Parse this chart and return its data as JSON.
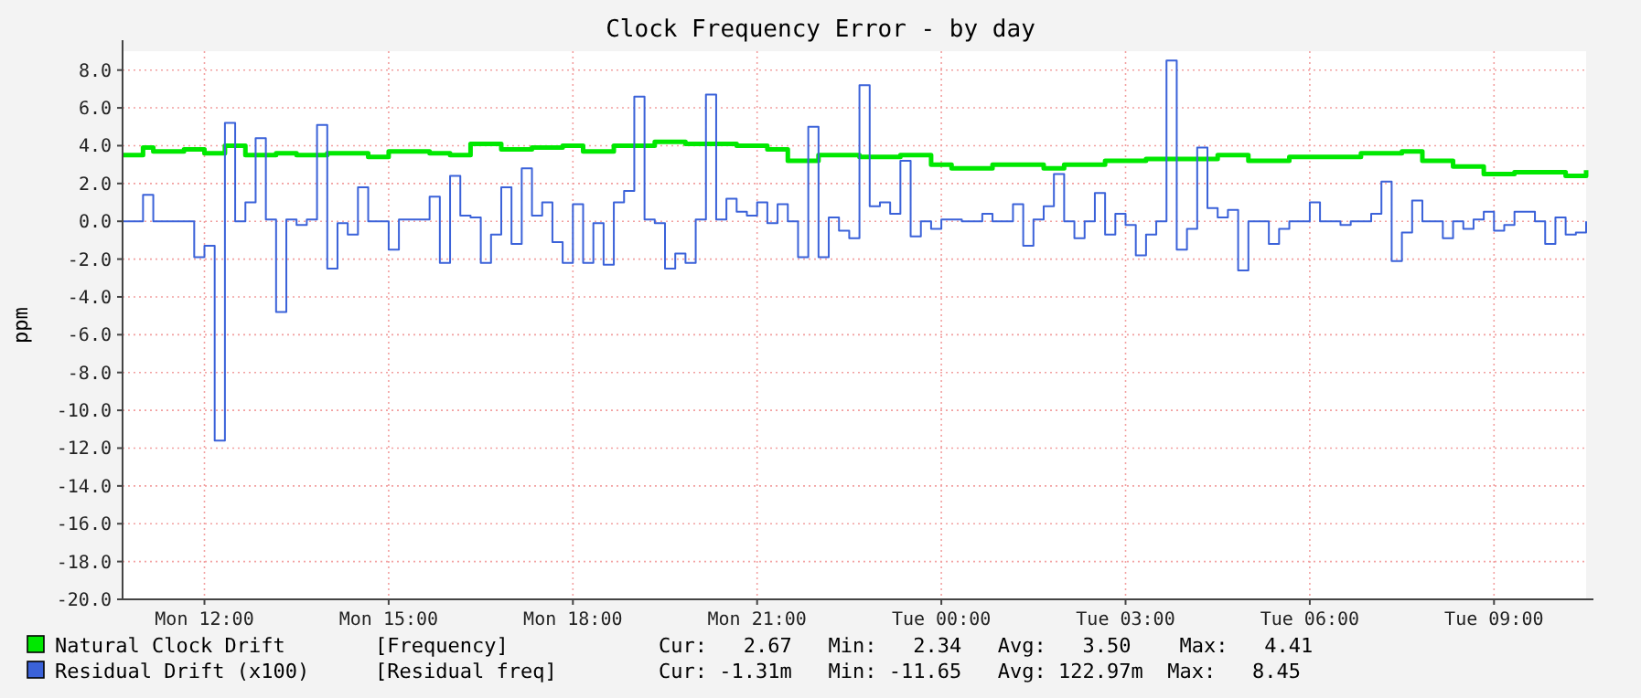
{
  "chart_data": {
    "type": "step",
    "title": "Clock Frequency Error - by day",
    "ylabel": "ppm",
    "categories": [
      null,
      null,
      null,
      null,
      null,
      null,
      null,
      null,
      "Mon 12:00",
      null,
      null,
      null,
      null,
      null,
      null,
      null,
      null,
      null,
      null,
      null,
      null,
      null,
      null,
      null,
      null,
      null,
      "Mon 15:00",
      null,
      null,
      null,
      null,
      null,
      null,
      null,
      null,
      null,
      null,
      null,
      null,
      null,
      null,
      null,
      null,
      null,
      "Mon 18:00",
      null,
      null,
      null,
      null,
      null,
      null,
      null,
      null,
      null,
      null,
      null,
      null,
      null,
      null,
      null,
      null,
      null,
      "Mon 21:00",
      null,
      null,
      null,
      null,
      null,
      null,
      null,
      null,
      null,
      null,
      null,
      null,
      null,
      null,
      null,
      null,
      null,
      "Tue 00:00",
      null,
      null,
      null,
      null,
      null,
      null,
      null,
      null,
      null,
      null,
      null,
      null,
      null,
      null,
      null,
      null,
      null,
      "Tue 03:00",
      null,
      null,
      null,
      null,
      null,
      null,
      null,
      null,
      null,
      null,
      null,
      null,
      null,
      null,
      null,
      null,
      null,
      "Tue 06:00",
      null,
      null,
      null,
      null,
      null,
      null,
      null,
      null,
      null,
      null,
      null,
      null,
      null,
      null,
      null,
      null,
      null,
      "Tue 09:00",
      null,
      null,
      null,
      null,
      null,
      null,
      null,
      null,
      null
    ],
    "ylim": [
      -20,
      9
    ],
    "yticks": [
      {
        "value": 8,
        "label": "8.0"
      },
      {
        "value": 6,
        "label": "6.0"
      },
      {
        "value": 4,
        "label": "4.0"
      },
      {
        "value": 2,
        "label": "2.0"
      },
      {
        "value": 0,
        "label": "0.0"
      },
      {
        "value": -2,
        "label": "-2.0"
      },
      {
        "value": -4,
        "label": "-4.0"
      },
      {
        "value": -6,
        "label": "-6.0"
      },
      {
        "value": -8,
        "label": "-8.0"
      },
      {
        "value": -10,
        "label": "-10.0"
      },
      {
        "value": -12,
        "label": "-12.0"
      },
      {
        "value": -14,
        "label": "-14.0"
      },
      {
        "value": -16,
        "label": "-16.0"
      },
      {
        "value": -18,
        "label": "-18.0"
      },
      {
        "value": -20,
        "label": "-20.0"
      }
    ],
    "grid": true,
    "legend": "bottom",
    "annotations": [
      "[Frequency]",
      "Cur:   2.67   Min:   2.34   Avg:   3.50    Max:   4.41",
      "[Residual freq]",
      "Cur: -1.31m   Min: -11.65   Avg: 122.97m  Max:   8.45"
    ],
    "series": [
      {
        "name": "Natural Clock Drift",
        "color": "#00e800",
        "values": [
          3.5,
          3.5,
          3.9,
          3.7,
          3.7,
          3.7,
          3.8,
          3.8,
          3.6,
          3.6,
          4,
          4,
          3.5,
          3.5,
          3.5,
          3.6,
          3.6,
          3.5,
          3.5,
          3.5,
          3.6,
          3.6,
          3.6,
          3.6,
          3.4,
          3.4,
          3.7,
          3.7,
          3.7,
          3.7,
          3.6,
          3.6,
          3.5,
          3.5,
          4.1,
          4.1,
          4.1,
          3.8,
          3.8,
          3.8,
          3.9,
          3.9,
          3.9,
          4,
          4,
          3.7,
          3.7,
          3.7,
          4,
          4,
          4,
          4,
          4.2,
          4.2,
          4.2,
          4.1,
          4.1,
          4.1,
          4.1,
          4.1,
          4,
          4,
          4,
          3.8,
          3.8,
          3.2,
          3.2,
          3.2,
          3.5,
          3.5,
          3.5,
          3.5,
          3.4,
          3.4,
          3.4,
          3.4,
          3.5,
          3.5,
          3.5,
          3,
          3,
          2.8,
          2.8,
          2.8,
          2.8,
          3,
          3,
          3,
          3,
          3,
          2.8,
          2.8,
          3,
          3,
          3,
          3,
          3.2,
          3.2,
          3.2,
          3.2,
          3.3,
          3.3,
          3.3,
          3.3,
          3.3,
          3.3,
          3.3,
          3.5,
          3.5,
          3.5,
          3.2,
          3.2,
          3.2,
          3.2,
          3.4,
          3.4,
          3.4,
          3.4,
          3.4,
          3.4,
          3.4,
          3.6,
          3.6,
          3.6,
          3.6,
          3.7,
          3.7,
          3.2,
          3.2,
          3.2,
          2.9,
          2.9,
          2.9,
          2.5,
          2.5,
          2.5,
          2.6,
          2.6,
          2.6,
          2.6,
          2.6,
          2.4,
          2.4,
          2.7
        ]
      },
      {
        "name": "Residual Drift (x100)",
        "color": "#3b62d9",
        "values": [
          0,
          0,
          1.4,
          0,
          0,
          0,
          0,
          -1.9,
          -1.3,
          -11.6,
          5.2,
          0,
          1,
          4.4,
          0.1,
          -4.8,
          0.1,
          -0.2,
          0.1,
          5.1,
          -2.5,
          -0.1,
          -0.7,
          1.8,
          0,
          0,
          -1.5,
          0.1,
          0.1,
          0.1,
          1.3,
          -2.2,
          2.4,
          0.3,
          0.2,
          -2.2,
          -0.7,
          1.8,
          -1.2,
          2.8,
          0.3,
          1,
          -1.1,
          -2.2,
          0.9,
          -2.2,
          -0.1,
          -2.3,
          1,
          1.6,
          6.6,
          0.1,
          -0.1,
          -2.5,
          -1.7,
          -2.2,
          0.1,
          6.7,
          0.1,
          1.2,
          0.5,
          0.3,
          1,
          -0.1,
          0.9,
          0,
          -1.9,
          5,
          -1.9,
          0.2,
          -0.5,
          -0.9,
          7.2,
          0.8,
          1,
          0.4,
          3.2,
          -0.8,
          0,
          -0.4,
          0.1,
          0.1,
          0,
          0,
          0.4,
          0,
          0,
          0.9,
          -1.3,
          0.1,
          0.8,
          2.5,
          0,
          -0.9,
          0,
          1.5,
          -0.7,
          0.4,
          -0.2,
          -1.8,
          -0.7,
          0,
          8.5,
          -1.5,
          -0.4,
          3.9,
          0.7,
          0.2,
          0.6,
          -2.6,
          0,
          0,
          -1.2,
          -0.4,
          0,
          0,
          1,
          0,
          0,
          -0.2,
          0,
          0,
          0.4,
          2.1,
          -2.1,
          -0.6,
          1.1,
          0,
          0,
          -0.9,
          0,
          -0.4,
          0.1,
          0.5,
          -0.5,
          -0.2,
          0.5,
          0.5,
          0,
          -1.2,
          0.2,
          -0.7,
          -0.6,
          0
        ]
      }
    ]
  }
}
